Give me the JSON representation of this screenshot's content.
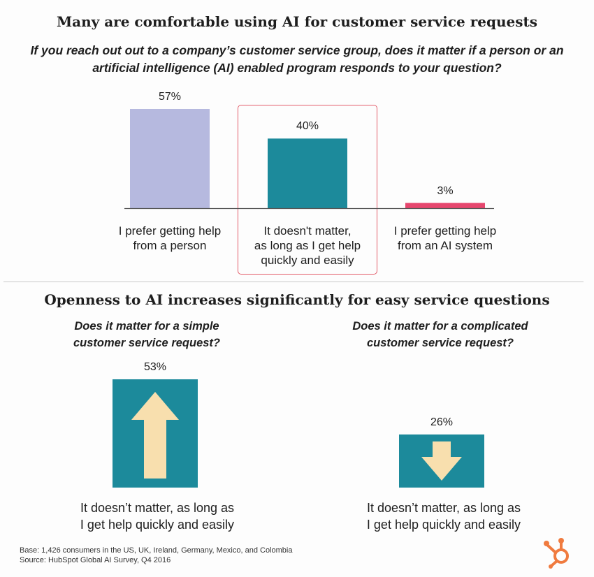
{
  "colors": {
    "person": "#b6b9df",
    "doesnt_matter": "#1c8a9b",
    "ai": "#e6466e",
    "arrow": "#f8dfae",
    "highlight": "#e35d6a",
    "hubspot": "#f07b3f"
  },
  "chart_data": [
    {
      "type": "bar",
      "title": "Many are comfortable using AI for customer service requests",
      "subtitle": "If you reach out out to a company’s customer service group, does it matter if a person or an artificial intelligence (AI) enabled program responds to your question?",
      "categories": [
        "I prefer getting help from a person",
        "It doesn't matter, as long as I get help quickly and easily",
        "I prefer getting help from an AI system"
      ],
      "values": [
        57,
        40,
        3
      ],
      "value_labels": [
        "57%",
        "40%",
        "3%"
      ],
      "category_lines": [
        [
          "I prefer getting help",
          "from a person"
        ],
        [
          "It doesn't matter,",
          "as long as I get help",
          "quickly and easily"
        ],
        [
          "I prefer getting help",
          "from an AI system"
        ]
      ],
      "highlighted_category": 1,
      "ylim": [
        0,
        57
      ],
      "grid": false
    },
    {
      "type": "bar",
      "title": "Openness to AI increases significantly for easy service questions",
      "panels": [
        {
          "question_lines": [
            "Does it matter for a simple",
            "customer service request?"
          ],
          "value": 53,
          "value_label": "53%",
          "direction": "up",
          "label_lines": [
            "It doesn’t matter, as long as",
            "I get help quickly and easily"
          ]
        },
        {
          "question_lines": [
            "Does it matter for a complicated",
            "customer service request?"
          ],
          "value": 26,
          "value_label": "26%",
          "direction": "down",
          "label_lines": [
            "It doesn’t matter, as long as",
            "I get help quickly and easily"
          ]
        }
      ]
    }
  ],
  "footer": {
    "base": "Base: 1,426 consumers in the US, UK, Ireland, Germany, Mexico, and Colombia",
    "source": "Source: HubSpot Global AI Survey, Q4 2016"
  },
  "logo": {
    "icon": "hubspot-sprocket-icon"
  }
}
